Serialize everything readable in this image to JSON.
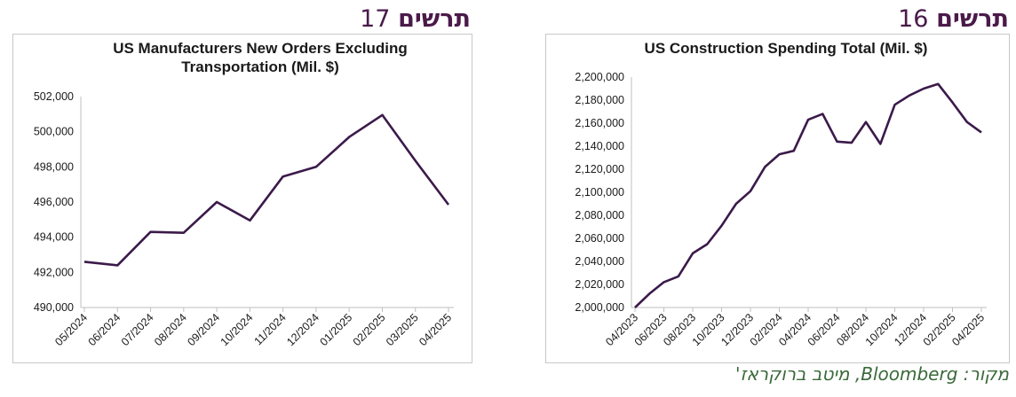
{
  "figures": [
    {
      "word": "תרשים",
      "number": "17"
    },
    {
      "word": "תרשים",
      "number": "16"
    }
  ],
  "source_text": "מקור: Bloomberg, מיטב ברוקראז'",
  "colors": {
    "line": "#3b1a4a",
    "header": "#4a1a4a",
    "source": "#3a6a3a"
  },
  "chart_data": [
    {
      "type": "line",
      "title": [
        "US Manufacturers New Orders Excluding",
        "Transportation (Mil. $)"
      ],
      "categories": [
        "05/2024",
        "06/2024",
        "07/2024",
        "08/2024",
        "09/2024",
        "10/2024",
        "11/2024",
        "12/2024",
        "01/2025",
        "02/2025",
        "03/2025",
        "04/2025"
      ],
      "x": [
        "05/2024",
        "06/2024",
        "07/2024",
        "08/2024",
        "09/2024",
        "10/2024",
        "11/2024",
        "12/2024",
        "01/2025",
        "02/2025",
        "03/2025",
        "04/2025"
      ],
      "values": [
        492600,
        492400,
        494300,
        494250,
        496000,
        494950,
        497450,
        498000,
        499700,
        500950,
        498350,
        495850
      ],
      "ylim": [
        490000,
        502000
      ],
      "yticks": [
        "490,000",
        "492,000",
        "494,000",
        "496,000",
        "498,000",
        "500,000",
        "502,000"
      ],
      "grid": false,
      "legend": "none"
    },
    {
      "type": "line",
      "title": [
        "US Construction Spending Total (Mil. $)"
      ],
      "categories": [
        "04/2023",
        "06/2023",
        "08/2023",
        "10/2023",
        "12/2023",
        "02/2024",
        "04/2024",
        "06/2024",
        "08/2024",
        "10/2024",
        "12/2024",
        "02/2025",
        "04/2025"
      ],
      "x": [
        "04/2023",
        "05/2023",
        "06/2023",
        "07/2023",
        "08/2023",
        "09/2023",
        "10/2023",
        "11/2023",
        "12/2023",
        "01/2024",
        "02/2024",
        "03/2024",
        "04/2024",
        "05/2024",
        "06/2024",
        "07/2024",
        "08/2024",
        "09/2024",
        "10/2024",
        "11/2024",
        "12/2024",
        "01/2025",
        "02/2025",
        "03/2025",
        "04/2025"
      ],
      "values": [
        2000000,
        2012000,
        2022000,
        2027000,
        2047000,
        2055000,
        2071000,
        2090000,
        2101000,
        2122000,
        2133000,
        2136000,
        2163000,
        2168000,
        2144000,
        2143000,
        2161000,
        2142000,
        2176000,
        2184000,
        2190000,
        2194000,
        2178000,
        2161000,
        2152000
      ],
      "ylim": [
        2000000,
        2200000
      ],
      "yticks": [
        "2,000,000",
        "2,020,000",
        "2,040,000",
        "2,060,000",
        "2,080,000",
        "2,100,000",
        "2,120,000",
        "2,140,000",
        "2,160,000",
        "2,180,000",
        "2,200,000"
      ],
      "grid": false,
      "legend": "none"
    }
  ]
}
